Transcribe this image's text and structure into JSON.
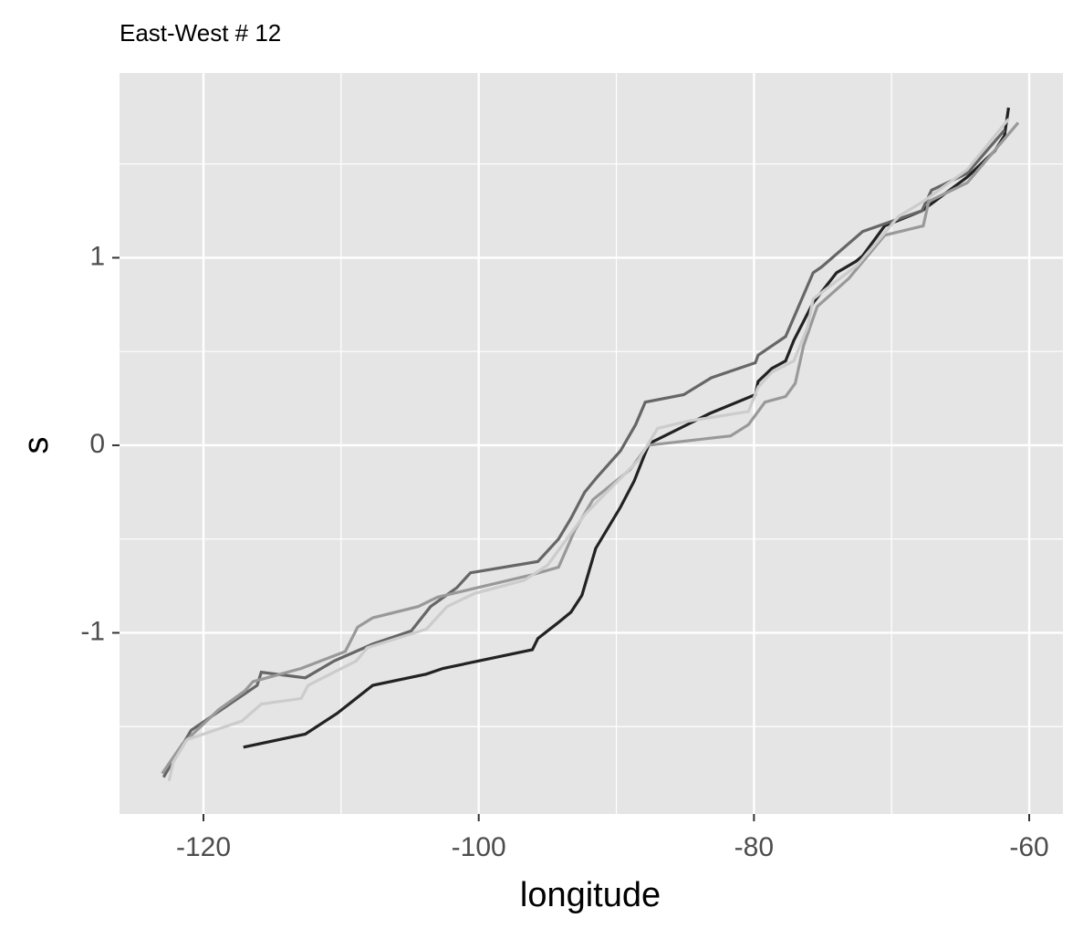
{
  "chart_data": {
    "type": "line",
    "title": "East-West # 12",
    "x_label": "longitude",
    "y_label": "s",
    "xlim": [
      -126.1,
      -57.55
    ],
    "ylim": [
      -1.966,
      1.985
    ],
    "xticks": [
      -120,
      -100,
      -80,
      -60
    ],
    "yticks": [
      -1,
      0,
      1
    ],
    "xminor_ticks": [
      -110,
      -90,
      -70
    ],
    "yminor_ticks": [
      -1.5,
      -0.5,
      0.5,
      1.5
    ],
    "grid": true,
    "series": [
      {
        "color": "#222222",
        "x": [
          -117.1,
          -112.6,
          -110.3,
          -107.7,
          -103.8,
          -102.6,
          -96.1,
          -95.7,
          -94.3,
          -93.3,
          -92.5,
          -91.5,
          -89.7,
          -88.7,
          -88.0,
          -87.6,
          -83.2,
          -79.9,
          -79.7,
          -78.7,
          -77.7,
          -77.1,
          -75.7,
          -74.0,
          -72.6,
          -72.1,
          -70.5,
          -67.8,
          -64.5,
          -62.5,
          -61.8,
          -61.5
        ],
        "values": [
          -1.61,
          -1.54,
          -1.43,
          -1.28,
          -1.22,
          -1.19,
          -1.09,
          -1.03,
          -0.95,
          -0.89,
          -0.8,
          -0.55,
          -0.33,
          -0.19,
          -0.06,
          0.01,
          0.17,
          0.27,
          0.34,
          0.41,
          0.45,
          0.56,
          0.76,
          0.92,
          0.98,
          1.01,
          1.17,
          1.25,
          1.43,
          1.57,
          1.65,
          1.8
        ]
      },
      {
        "color": "#666666",
        "x": [
          -122.9,
          -120.9,
          -118.9,
          -116.1,
          -115.8,
          -112.6,
          -110.5,
          -107.7,
          -104.9,
          -103.5,
          -101.6,
          -100.6,
          -95.7,
          -94.2,
          -93.3,
          -92.3,
          -91.4,
          -89.7,
          -88.6,
          -87.9,
          -85.1,
          -83.1,
          -79.9,
          -79.7,
          -77.7,
          -75.7,
          -75.1,
          -72.1,
          -67.8,
          -67.1,
          -64.5,
          -61.8
        ],
        "values": [
          -1.77,
          -1.52,
          -1.42,
          -1.28,
          -1.21,
          -1.24,
          -1.15,
          -1.06,
          -0.99,
          -0.86,
          -0.76,
          -0.68,
          -0.62,
          -0.5,
          -0.39,
          -0.25,
          -0.17,
          -0.03,
          0.11,
          0.23,
          0.27,
          0.36,
          0.44,
          0.48,
          0.58,
          0.92,
          0.95,
          1.14,
          1.25,
          1.36,
          1.45,
          1.68
        ]
      },
      {
        "color": "#999999",
        "x": [
          -123.0,
          -121.5,
          -118.9,
          -117.0,
          -116.4,
          -112.9,
          -109.7,
          -108.8,
          -107.7,
          -104.4,
          -103.0,
          -96.1,
          -94.2,
          -93.0,
          -91.7,
          -89.0,
          -87.7,
          -81.7,
          -80.4,
          -79.2,
          -77.7,
          -77.0,
          -76.4,
          -75.4,
          -73.1,
          -70.5,
          -67.7,
          -67.3,
          -64.5,
          -60.8
        ],
        "values": [
          -1.75,
          -1.59,
          -1.41,
          -1.31,
          -1.26,
          -1.19,
          -1.1,
          -0.97,
          -0.92,
          -0.86,
          -0.81,
          -0.69,
          -0.65,
          -0.45,
          -0.29,
          -0.13,
          0.0,
          0.05,
          0.11,
          0.23,
          0.26,
          0.33,
          0.53,
          0.74,
          0.89,
          1.12,
          1.17,
          1.3,
          1.4,
          1.72
        ]
      },
      {
        "color": "#cccccc",
        "x": [
          -122.5,
          -122.2,
          -121.2,
          -117.2,
          -115.8,
          -112.9,
          -112.4,
          -108.9,
          -108.1,
          -103.8,
          -102.3,
          -100.3,
          -96.7,
          -95.0,
          -92.3,
          -90.7,
          -88.4,
          -87.0,
          -84.7,
          -80.4,
          -79.7,
          -78.7,
          -77.1,
          -76.1,
          -75.7,
          -72.5,
          -69.5,
          -67.7,
          -64.5,
          -61.5
        ],
        "values": [
          -1.79,
          -1.69,
          -1.57,
          -1.47,
          -1.38,
          -1.35,
          -1.28,
          -1.15,
          -1.08,
          -0.98,
          -0.86,
          -0.79,
          -0.72,
          -0.64,
          -0.37,
          -0.25,
          -0.08,
          0.09,
          0.13,
          0.18,
          0.31,
          0.39,
          0.45,
          0.63,
          0.78,
          0.96,
          1.22,
          1.3,
          1.47,
          1.74
        ]
      }
    ]
  }
}
